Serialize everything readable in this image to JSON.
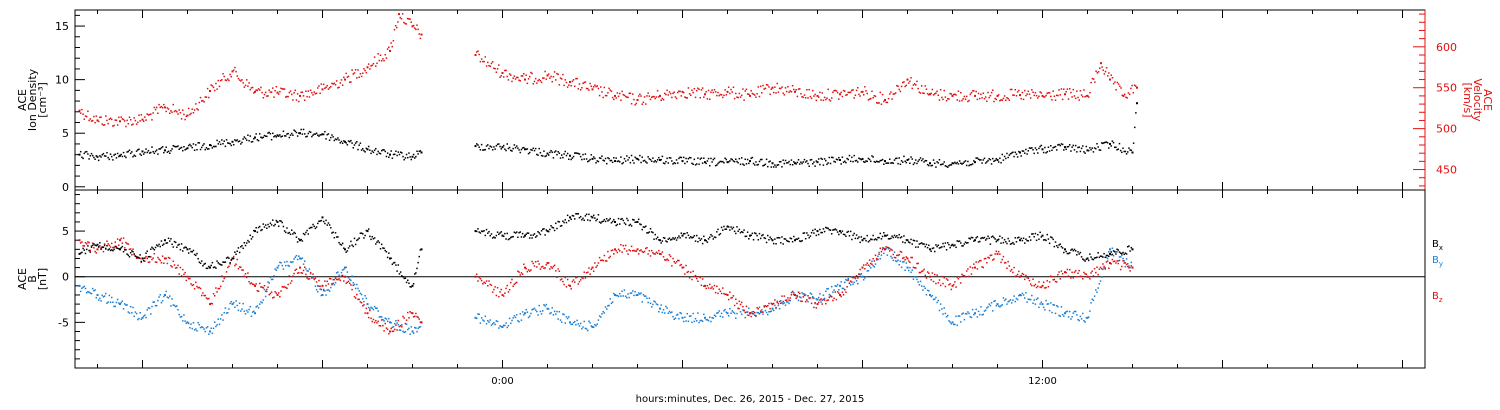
{
  "figure": {
    "xlabel": "hours:minutes, Dec. 26, 2015 - Dec. 27, 2015"
  },
  "chart_data": [
    {
      "type": "scatter",
      "panel": "top",
      "ylabel_left": [
        "ACE",
        "Ion Density",
        "[cm⁻³]"
      ],
      "ylabel_right": [
        "ACE",
        "Velocity",
        "[km/s]"
      ],
      "x_ticks": [
        {
          "label": "0:00",
          "hour": 0
        },
        {
          "label": "12:00",
          "hour": 12
        }
      ],
      "xlim_hours": [
        -9.5,
        20.5
      ],
      "y_left": {
        "lim": [
          -0.3,
          16.5
        ],
        "ticks": [
          0,
          5,
          10,
          15
        ]
      },
      "y_right": {
        "lim": [
          425,
          645
        ],
        "ticks": [
          450,
          500,
          550,
          600
        ]
      },
      "series": [
        {
          "axis": "left",
          "color": "#000000",
          "points": [
            [
              -9.4,
              3.0
            ],
            [
              -9.0,
              2.8
            ],
            [
              -8.5,
              2.9
            ],
            [
              -8.0,
              3.3
            ],
            [
              -7.5,
              3.4
            ],
            [
              -7.0,
              3.6
            ],
            [
              -6.5,
              3.9
            ],
            [
              -6.0,
              4.2
            ],
            [
              -5.5,
              4.6
            ],
            [
              -5.0,
              4.8
            ],
            [
              -4.5,
              5.0
            ],
            [
              -4.0,
              4.9
            ],
            [
              -3.5,
              4.2
            ],
            [
              -3.0,
              3.5
            ],
            [
              -2.5,
              3.0
            ],
            [
              -2.0,
              2.8
            ],
            [
              -1.8,
              3.2
            ],
            [
              -0.6,
              3.8
            ],
            [
              0.0,
              3.7
            ],
            [
              0.5,
              3.5
            ],
            [
              1.0,
              3.1
            ],
            [
              1.5,
              2.9
            ],
            [
              2.0,
              2.6
            ],
            [
              2.5,
              2.4
            ],
            [
              3.0,
              2.6
            ],
            [
              3.5,
              2.5
            ],
            [
              4.0,
              2.4
            ],
            [
              4.5,
              2.3
            ],
            [
              5.0,
              2.3
            ],
            [
              5.5,
              2.4
            ],
            [
              6.0,
              2.2
            ],
            [
              6.5,
              2.2
            ],
            [
              7.0,
              2.3
            ],
            [
              7.5,
              2.5
            ],
            [
              8.0,
              2.6
            ],
            [
              8.5,
              2.4
            ],
            [
              9.0,
              2.5
            ],
            [
              9.5,
              2.2
            ],
            [
              10.0,
              2.2
            ],
            [
              10.5,
              2.3
            ],
            [
              11.0,
              2.5
            ],
            [
              11.5,
              3.2
            ],
            [
              12.0,
              3.5
            ],
            [
              12.5,
              3.7
            ],
            [
              13.0,
              3.4
            ],
            [
              13.5,
              4.0
            ],
            [
              14.0,
              3.2
            ],
            [
              14.1,
              7.8
            ]
          ]
        },
        {
          "axis": "right",
          "color": "#e01010",
          "points": [
            [
              -9.4,
              522
            ],
            [
              -9.0,
              510
            ],
            [
              -8.5,
              509
            ],
            [
              -8.0,
              511
            ],
            [
              -7.5,
              526
            ],
            [
              -7.0,
              516
            ],
            [
              -6.5,
              546
            ],
            [
              -6.0,
              570
            ],
            [
              -5.5,
              545
            ],
            [
              -5.0,
              544
            ],
            [
              -4.5,
              540
            ],
            [
              -4.0,
              548
            ],
            [
              -3.5,
              560
            ],
            [
              -3.0,
              575
            ],
            [
              -2.5,
              595
            ],
            [
              -2.3,
              640
            ],
            [
              -2.0,
              625
            ],
            [
              -1.8,
              615
            ],
            [
              -0.6,
              590
            ],
            [
              0.0,
              568
            ],
            [
              0.5,
              560
            ],
            [
              1.0,
              565
            ],
            [
              1.5,
              557
            ],
            [
              2.0,
              548
            ],
            [
              2.5,
              540
            ],
            [
              3.0,
              535
            ],
            [
              3.5,
              540
            ],
            [
              4.0,
              545
            ],
            [
              4.5,
              542
            ],
            [
              5.0,
              545
            ],
            [
              5.5,
              540
            ],
            [
              6.0,
              550
            ],
            [
              6.5,
              545
            ],
            [
              7.0,
              540
            ],
            [
              7.5,
              542
            ],
            [
              8.0,
              545
            ],
            [
              8.5,
              535
            ],
            [
              9.0,
              560
            ],
            [
              9.5,
              542
            ],
            [
              10.0,
              540
            ],
            [
              10.5,
              540
            ],
            [
              11.0,
              540
            ],
            [
              11.5,
              541
            ],
            [
              12.0,
              540
            ],
            [
              12.5,
              542
            ],
            [
              13.0,
              540
            ],
            [
              13.3,
              580
            ],
            [
              13.5,
              560
            ],
            [
              13.8,
              540
            ],
            [
              14.1,
              550
            ]
          ]
        }
      ]
    },
    {
      "type": "scatter",
      "panel": "bottom",
      "ylabel_left": [
        "ACE",
        "B",
        "[nT]"
      ],
      "xlim_hours": [
        -9.5,
        20.5
      ],
      "y_left": {
        "lim": [
          -10,
          9.5
        ],
        "ticks": [
          -5,
          0,
          5
        ]
      },
      "zero_line": true,
      "legend": [
        {
          "label": "B",
          "sub": "x",
          "color": "#000000"
        },
        {
          "label": "B",
          "sub": "y",
          "color": "#1a7fd4"
        },
        {
          "label": "B",
          "sub": "z",
          "color": "#e01010"
        }
      ],
      "series": [
        {
          "name": "Bx",
          "color": "#000000",
          "points": [
            [
              -9.4,
              2.5
            ],
            [
              -9.0,
              3.5
            ],
            [
              -8.5,
              3.0
            ],
            [
              -8.0,
              2.0
            ],
            [
              -7.5,
              4.0
            ],
            [
              -7.0,
              3.0
            ],
            [
              -6.5,
              1.0
            ],
            [
              -6.0,
              2.0
            ],
            [
              -5.5,
              5.0
            ],
            [
              -5.0,
              6.0
            ],
            [
              -4.5,
              4.0
            ],
            [
              -4.0,
              6.5
            ],
            [
              -3.5,
              3.0
            ],
            [
              -3.0,
              5.0
            ],
            [
              -2.5,
              2.0
            ],
            [
              -2.0,
              -1.0
            ],
            [
              -1.8,
              3.0
            ],
            [
              -0.6,
              5.0
            ],
            [
              0.0,
              4.5
            ],
            [
              0.5,
              4.5
            ],
            [
              1.0,
              5.0
            ],
            [
              1.5,
              6.5
            ],
            [
              2.0,
              6.5
            ],
            [
              2.5,
              6.0
            ],
            [
              3.0,
              6.0
            ],
            [
              3.5,
              4.0
            ],
            [
              4.0,
              4.5
            ],
            [
              4.5,
              4.0
            ],
            [
              5.0,
              5.5
            ],
            [
              5.5,
              4.5
            ],
            [
              6.0,
              4.0
            ],
            [
              6.5,
              4.0
            ],
            [
              7.0,
              5.0
            ],
            [
              7.5,
              5.0
            ],
            [
              8.0,
              4.0
            ],
            [
              8.5,
              4.5
            ],
            [
              9.0,
              4.0
            ],
            [
              9.5,
              3.0
            ],
            [
              10.0,
              3.5
            ],
            [
              10.5,
              4.0
            ],
            [
              11.0,
              4.0
            ],
            [
              11.5,
              4.0
            ],
            [
              12.0,
              4.5
            ],
            [
              12.5,
              3.0
            ],
            [
              13.0,
              2.0
            ],
            [
              13.5,
              2.5
            ],
            [
              14.0,
              3.0
            ]
          ]
        },
        {
          "name": "By",
          "color": "#1a7fd4",
          "points": [
            [
              -9.4,
              -1.0
            ],
            [
              -9.0,
              -2.0
            ],
            [
              -8.5,
              -3.0
            ],
            [
              -8.0,
              -4.5
            ],
            [
              -7.5,
              -2.0
            ],
            [
              -7.0,
              -5.0
            ],
            [
              -6.5,
              -6.0
            ],
            [
              -6.0,
              -3.0
            ],
            [
              -5.5,
              -4.0
            ],
            [
              -5.0,
              1.0
            ],
            [
              -4.5,
              2.0
            ],
            [
              -4.0,
              -2.0
            ],
            [
              -3.5,
              1.0
            ],
            [
              -3.0,
              -3.0
            ],
            [
              -2.5,
              -5.0
            ],
            [
              -2.0,
              -6.0
            ],
            [
              -1.8,
              -5.0
            ],
            [
              -0.6,
              -4.5
            ],
            [
              0.0,
              -5.5
            ],
            [
              0.5,
              -4.0
            ],
            [
              1.0,
              -3.5
            ],
            [
              1.5,
              -5.0
            ],
            [
              2.0,
              -5.5
            ],
            [
              2.5,
              -2.0
            ],
            [
              3.0,
              -2.0
            ],
            [
              3.5,
              -3.5
            ],
            [
              4.0,
              -4.5
            ],
            [
              4.5,
              -4.5
            ],
            [
              5.0,
              -4.0
            ],
            [
              5.5,
              -4.0
            ],
            [
              6.0,
              -3.5
            ],
            [
              6.5,
              -2.0
            ],
            [
              7.0,
              -2.5
            ],
            [
              7.5,
              -1.0
            ],
            [
              8.0,
              0.0
            ],
            [
              8.5,
              3.0
            ],
            [
              9.0,
              1.0
            ],
            [
              9.5,
              -2.0
            ],
            [
              10.0,
              -5.0
            ],
            [
              10.5,
              -4.0
            ],
            [
              11.0,
              -3.0
            ],
            [
              11.5,
              -2.0
            ],
            [
              12.0,
              -3.0
            ],
            [
              12.5,
              -4.0
            ],
            [
              13.0,
              -4.5
            ],
            [
              13.5,
              3.0
            ],
            [
              14.0,
              1.0
            ]
          ]
        },
        {
          "name": "Bz",
          "color": "#e01010",
          "points": [
            [
              -9.4,
              4.0
            ],
            [
              -9.0,
              3.0
            ],
            [
              -8.5,
              4.0
            ],
            [
              -8.0,
              2.0
            ],
            [
              -7.5,
              2.0
            ],
            [
              -7.0,
              0.0
            ],
            [
              -6.5,
              -3.0
            ],
            [
              -6.0,
              2.0
            ],
            [
              -5.5,
              -1.0
            ],
            [
              -5.0,
              -2.0
            ],
            [
              -4.5,
              1.0
            ],
            [
              -4.0,
              -1.0
            ],
            [
              -3.5,
              0.0
            ],
            [
              -3.0,
              -4.0
            ],
            [
              -2.5,
              -6.0
            ],
            [
              -2.0,
              -4.0
            ],
            [
              -1.8,
              -5.0
            ],
            [
              -0.6,
              0.0
            ],
            [
              0.0,
              -2.0
            ],
            [
              0.5,
              1.0
            ],
            [
              1.0,
              1.5
            ],
            [
              1.5,
              -1.0
            ],
            [
              2.0,
              1.0
            ],
            [
              2.5,
              3.0
            ],
            [
              3.0,
              3.0
            ],
            [
              3.5,
              2.5
            ],
            [
              4.0,
              1.0
            ],
            [
              4.5,
              -1.0
            ],
            [
              5.0,
              -2.0
            ],
            [
              5.5,
              -4.0
            ],
            [
              6.0,
              -3.0
            ],
            [
              6.5,
              -2.0
            ],
            [
              7.0,
              -3.0
            ],
            [
              7.5,
              -2.0
            ],
            [
              8.0,
              1.0
            ],
            [
              8.5,
              3.0
            ],
            [
              9.0,
              2.0
            ],
            [
              9.5,
              0.0
            ],
            [
              10.0,
              -1.0
            ],
            [
              10.5,
              1.0
            ],
            [
              11.0,
              2.5
            ],
            [
              11.5,
              0.0
            ],
            [
              12.0,
              -1.0
            ],
            [
              12.5,
              0.5
            ],
            [
              13.0,
              0.0
            ],
            [
              13.5,
              1.5
            ],
            [
              14.0,
              1.0
            ]
          ]
        }
      ]
    }
  ]
}
